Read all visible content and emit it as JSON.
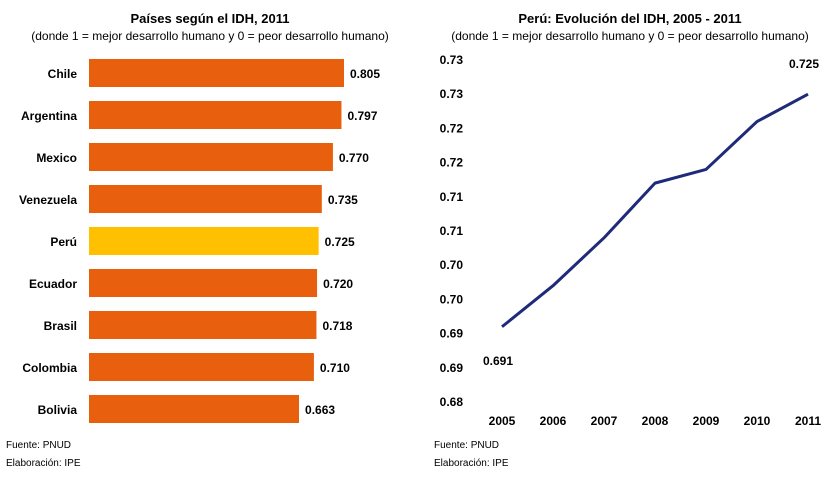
{
  "chart_data": [
    {
      "type": "bar",
      "orientation": "horizontal",
      "title": "Países según el IDH, 2011",
      "subtitle": "(donde 1 = mejor desarrollo humano y 0 = peor desarrollo humano)",
      "categories": [
        "Chile",
        "Argentina",
        "Mexico",
        "Venezuela",
        "Perú",
        "Ecuador",
        "Brasil",
        "Colombia",
        "Bolivia"
      ],
      "values": [
        0.805,
        0.797,
        0.77,
        0.735,
        0.725,
        0.72,
        0.718,
        0.71,
        0.663
      ],
      "value_labels": [
        "0.805",
        "0.797",
        "0.770",
        "0.735",
        "0.725",
        "0.720",
        "0.718",
        "0.710",
        "0.663"
      ],
      "highlight": "Perú",
      "colors": {
        "bar": "#E8600E",
        "highlight": "#FFC000"
      },
      "source": "Fuente: PNUD",
      "credit": "Elaboración: IPE"
    },
    {
      "type": "line",
      "title": "Perú: Evolución del IDH, 2005 - 2011",
      "subtitle": "(donde 1 = mejor desarrollo humano y 0 = peor desarrollo humano)",
      "x": [
        "2005",
        "2006",
        "2007",
        "2008",
        "2009",
        "2010",
        "2011"
      ],
      "y": [
        0.691,
        0.697,
        0.704,
        0.712,
        0.714,
        0.721,
        0.725
      ],
      "ylim": [
        0.68,
        0.73
      ],
      "yticks": [
        0.68,
        0.685,
        0.69,
        0.695,
        0.7,
        0.705,
        0.71,
        0.715,
        0.72,
        0.725,
        0.73
      ],
      "ytick_labels": [
        "0.68",
        "0.69",
        "0.69",
        "0.70",
        "0.70",
        "0.71",
        "0.71",
        "0.72",
        "0.72",
        "0.73",
        "0.73"
      ],
      "annotations": [
        {
          "x": "2005",
          "label": "0.691"
        },
        {
          "x": "2011",
          "label": "0.725"
        }
      ],
      "colors": {
        "line": "#1F2A7A"
      },
      "source": "Fuente: PNUD",
      "credit": "Elaboración: IPE"
    }
  ]
}
